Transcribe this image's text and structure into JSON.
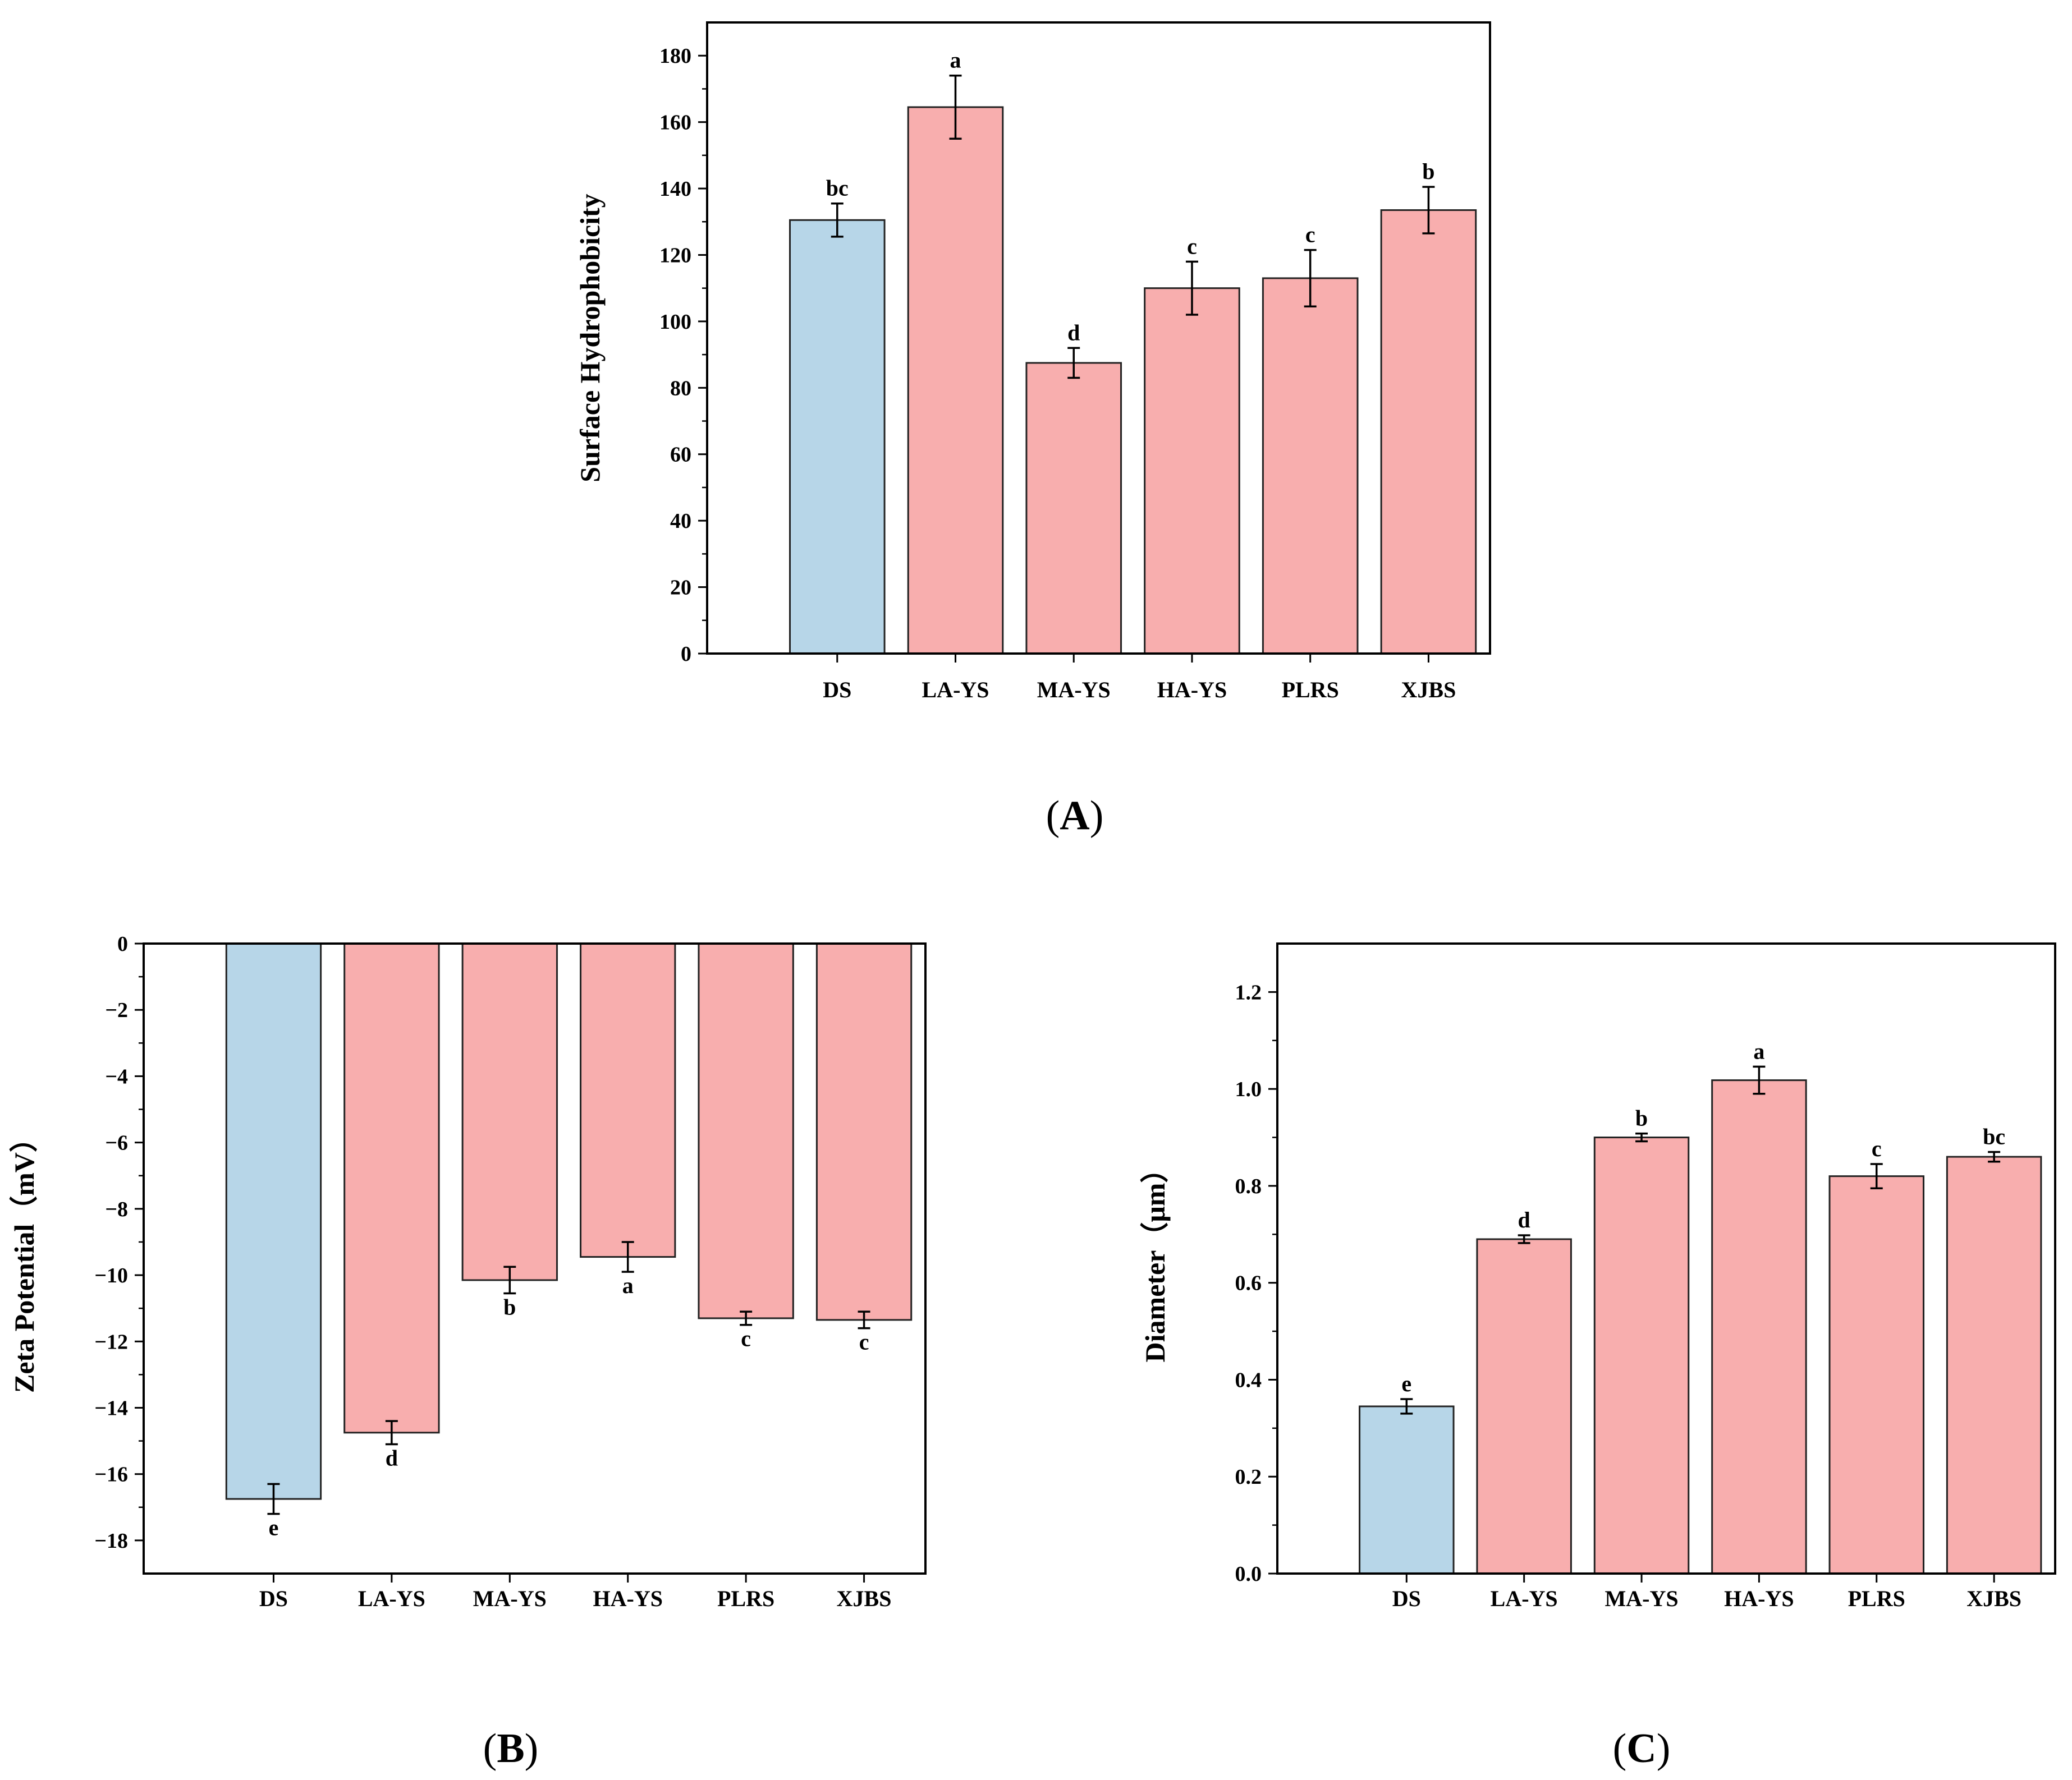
{
  "colors": {
    "control": "#b7d6e8",
    "sample": "#f8aeae",
    "stroke": "#222222"
  },
  "panels": [
    {
      "caption_letter": "A",
      "caption_open": "(",
      "caption_close": ")",
      "chart_data": {
        "type": "bar",
        "title": "",
        "xlabel": "",
        "ylabel": "Surface Hydrophobicity",
        "ylim": [
          0,
          190
        ],
        "yticks": [
          0,
          20,
          40,
          60,
          80,
          100,
          120,
          140,
          160,
          180
        ],
        "categories": [
          "DS",
          "LA-YS",
          "MA-YS",
          "HA-YS",
          "PLRS",
          "XJBS"
        ],
        "values": [
          130.5,
          164.5,
          87.5,
          110,
          113,
          133.5
        ],
        "errors": [
          5,
          9.5,
          4.5,
          8,
          8.5,
          7
        ],
        "letters": [
          "bc",
          "a",
          "d",
          "c",
          "c",
          "b"
        ],
        "color_keys": [
          "control",
          "sample",
          "sample",
          "sample",
          "sample",
          "sample"
        ]
      }
    },
    {
      "caption_letter": "B",
      "caption_open": "(",
      "caption_close": ")",
      "chart_data": {
        "type": "bar",
        "title": "",
        "xlabel": "",
        "ylabel": "Zeta Potential（mV）",
        "ylim": [
          -19,
          0
        ],
        "yticks": [
          0,
          -2,
          -4,
          -6,
          -8,
          -10,
          -12,
          -14,
          -16,
          -18
        ],
        "ytick_labels": [
          "0",
          "−2",
          "−4",
          "−6",
          "−8",
          "−10",
          "−12",
          "−14",
          "−16",
          "−18"
        ],
        "categories": [
          "DS",
          "LA-YS",
          "MA-YS",
          "HA-YS",
          "PLRS",
          "XJBS"
        ],
        "values": [
          -16.75,
          -14.75,
          -10.15,
          -9.45,
          -11.3,
          -11.35
        ],
        "errors": [
          0.45,
          0.35,
          0.4,
          0.45,
          0.2,
          0.25
        ],
        "letters": [
          "e",
          "d",
          "b",
          "a",
          "c",
          "c"
        ],
        "color_keys": [
          "control",
          "sample",
          "sample",
          "sample",
          "sample",
          "sample"
        ]
      }
    },
    {
      "caption_letter": "C",
      "caption_open": "(",
      "caption_close": ")",
      "chart_data": {
        "type": "bar",
        "title": "",
        "xlabel": "",
        "ylabel": "Diameter（μm）",
        "ylim": [
          0,
          1.3
        ],
        "yticks": [
          0,
          0.2,
          0.4,
          0.6,
          0.8,
          1.0,
          1.2
        ],
        "ytick_labels": [
          "0.0",
          "0.2",
          "0.4",
          "0.6",
          "0.8",
          "1.0",
          "1.2"
        ],
        "categories": [
          "DS",
          "LA-YS",
          "MA-YS",
          "HA-YS",
          "PLRS",
          "XJBS"
        ],
        "values": [
          0.345,
          0.69,
          0.9,
          1.018,
          0.82,
          0.86
        ],
        "errors": [
          0.015,
          0.008,
          0.008,
          0.028,
          0.025,
          0.01
        ],
        "letters": [
          "e",
          "d",
          "b",
          "a",
          "c",
          "bc"
        ],
        "color_keys": [
          "control",
          "sample",
          "sample",
          "sample",
          "sample",
          "sample"
        ]
      }
    }
  ]
}
